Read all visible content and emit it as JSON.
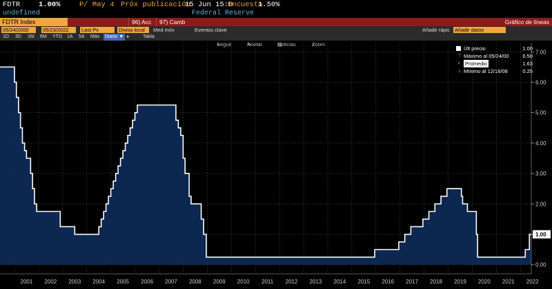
{
  "header": {
    "ticker": "FDTR",
    "price": "1.00%",
    "change": "P/ May 4",
    "next_label": "Próx publicación",
    "next_value": "15 Jun 15:0",
    "survey_label": "Encuesta",
    "survey_value": "1.50%",
    "sub_left": "undefined",
    "source": "Federal Reserve"
  },
  "toolbar_top": {
    "index": "FDTR Index",
    "acc": "96) Acc",
    "camb": "97) Camb",
    "chart_type": "Gráfico de líneas"
  },
  "filters": {
    "start_date": "05/24/2000",
    "end_date": "05/23/2022",
    "field": "Last Px",
    "currency": "Divisa local",
    "med_mov": "Med móv",
    "eventos": "Eventos clave",
    "add_quick": "Añadir rápic",
    "add_data": "Añadir datos"
  },
  "periods": {
    "items": [
      "1D",
      "3D",
      "1M",
      "6M",
      "YTD",
      "1A",
      "5A",
      "Máx"
    ],
    "frequency": "Diario",
    "table": "Tabla"
  },
  "chart_tools": {
    "follow": "Seguir",
    "annotate": "Anotar",
    "news": "Noticias",
    "zoom": "Zoom"
  },
  "legend": {
    "last_label": "Últ precio",
    "last_value": "1.00",
    "max_label": "Máximo al 05/24/00",
    "max_value": "6.50",
    "avg_label": "Promedio",
    "avg_value": "1.63",
    "min_label": "Mínimo al 12/16/08",
    "min_value": "0.25"
  },
  "colors": {
    "line": "#ffffff",
    "fill": "#0d2a55",
    "grid": "#555555",
    "accent": "#f2a640",
    "title_bar": "#8c1c1c"
  },
  "chart_data": {
    "type": "area",
    "y_ticks": [
      "0.00",
      "1.00",
      "2.00",
      "3.00",
      "4.00",
      "5.00",
      "6.00",
      "7.00"
    ],
    "last_tag": "1.00",
    "ylim": [
      -0.3,
      7.3
    ],
    "x_tick_labels": [
      "2001",
      "2002",
      "2003",
      "2004",
      "2005",
      "2006",
      "2007",
      "2008",
      "2009",
      "2010",
      "2011",
      "2012",
      "2013",
      "2014",
      "2015",
      "2016",
      "2017",
      "2018",
      "2019",
      "2020",
      "2021",
      "2022"
    ],
    "xlim": [
      2000.4,
      2022.45
    ],
    "grid": true,
    "x": [
      2000.4,
      2001.0,
      2001.08,
      2001.17,
      2001.25,
      2001.33,
      2001.42,
      2001.5,
      2001.67,
      2001.75,
      2001.83,
      2001.92,
      2002.9,
      2003.5,
      2004.5,
      2004.6,
      2004.7,
      2004.8,
      2004.9,
      2005.0,
      2005.1,
      2005.2,
      2005.3,
      2005.4,
      2005.5,
      2005.6,
      2005.7,
      2005.8,
      2005.9,
      2006.0,
      2006.1,
      2006.2,
      2006.3,
      2006.4,
      2006.5,
      2007.7,
      2007.8,
      2007.9,
      2008.0,
      2008.08,
      2008.25,
      2008.33,
      2008.75,
      2008.85,
      2008.96,
      2015.95,
      2016.95,
      2017.2,
      2017.45,
      2017.95,
      2018.2,
      2018.45,
      2018.7,
      2018.95,
      2019.55,
      2019.6,
      2019.8,
      2020.17,
      2020.22,
      2022.2,
      2022.37,
      2022.45
    ],
    "y": [
      6.5,
      6.0,
      5.5,
      5.0,
      4.5,
      4.0,
      3.75,
      3.5,
      3.0,
      2.5,
      2.0,
      1.75,
      1.25,
      1.0,
      1.25,
      1.5,
      1.75,
      2.0,
      2.25,
      2.5,
      2.75,
      3.0,
      3.25,
      3.5,
      3.75,
      4.0,
      4.25,
      4.5,
      4.75,
      5.0,
      5.25,
      5.25,
      5.25,
      5.25,
      5.25,
      4.75,
      4.5,
      4.25,
      3.5,
      3.0,
      2.25,
      2.0,
      1.5,
      1.0,
      0.25,
      0.5,
      0.75,
      1.0,
      1.25,
      1.5,
      1.75,
      2.0,
      2.25,
      2.5,
      2.25,
      2.0,
      1.75,
      1.0,
      0.25,
      0.5,
      1.0,
      1.0
    ]
  }
}
